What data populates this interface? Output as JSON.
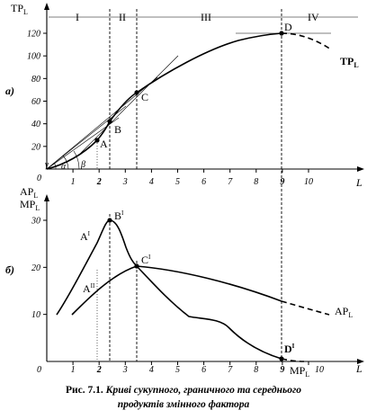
{
  "panel_a": {
    "tag": "а)",
    "y_axis": "TP",
    "y_axis_sub": "L",
    "x_axis": "L",
    "y_ticks": [
      "20",
      "40",
      "60",
      "80",
      "100",
      "120"
    ],
    "x_ticks": [
      "1",
      "2",
      "3",
      "4",
      "5",
      "6",
      "7",
      "8",
      "9",
      "10"
    ],
    "origin": "0",
    "stages": [
      "I",
      "II",
      "III",
      "IV"
    ],
    "points": [
      "A",
      "B",
      "C",
      "D"
    ],
    "curve_label": "TP",
    "curve_label_sub": "L",
    "angle_gamma": "γ",
    "angle_alpha": "α",
    "angle_beta": "β"
  },
  "panel_b": {
    "tag": "б)",
    "y_axis_1": "AP",
    "y_axis_1_sub": "L",
    "y_axis_2": "MP",
    "y_axis_2_sub": "L",
    "x_axis": "L",
    "y_ticks": [
      "10",
      "20",
      "30"
    ],
    "x_ticks": [
      "1",
      "2",
      "3",
      "4",
      "5",
      "6",
      "7",
      "8",
      "9",
      "10"
    ],
    "origin": "0",
    "points": [
      {
        "name": "A",
        "sup": "I"
      },
      {
        "name": "B",
        "sup": "I"
      },
      {
        "name": "C",
        "sup": "I"
      },
      {
        "name": "A",
        "sup": "II"
      },
      {
        "name": "D",
        "sup": "I"
      }
    ],
    "ap_label": "AP",
    "ap_label_sub": "L",
    "mp_label": "MP",
    "mp_label_sub": "L"
  },
  "caption": {
    "prefix": "Рис. 7.1.",
    "line1": "Криві сукупного, граничного та середнього",
    "line2": "продуктів змінного фактора"
  },
  "chart_data": [
    {
      "type": "line",
      "xlabel": "L",
      "ylabel": "TP L",
      "xlim": [
        0,
        11
      ],
      "ylim": [
        0,
        130
      ],
      "series": [
        {
          "name": "TP L",
          "x": [
            0,
            1,
            2,
            2.5,
            3.5,
            5,
            6.5,
            8,
            9,
            10,
            11
          ],
          "y": [
            0,
            12,
            30,
            45,
            70,
            98,
            111,
            118,
            120,
            114,
            103
          ]
        }
      ]
    },
    {
      "type": "line",
      "xlabel": "L",
      "ylabel": "AP L, MP L",
      "xlim": [
        0,
        11
      ],
      "ylim": [
        0,
        35
      ],
      "series": [
        {
          "name": "MP L",
          "x": [
            0.4,
            1.2,
            2,
            2.5,
            2.75,
            3.5,
            4.5,
            5.5,
            6.5,
            7.5,
            9,
            9.8
          ],
          "y": [
            10,
            17,
            24,
            30,
            28,
            20.5,
            14,
            9.5,
            8.5,
            4,
            0.7,
            0
          ]
        },
        {
          "name": "AP L",
          "x": [
            1,
            2,
            3,
            3.5,
            5,
            7,
            9,
            11
          ],
          "y": [
            10,
            15,
            19.5,
            20.5,
            19.5,
            16.5,
            12.5,
            9
          ]
        }
      ]
    }
  ]
}
